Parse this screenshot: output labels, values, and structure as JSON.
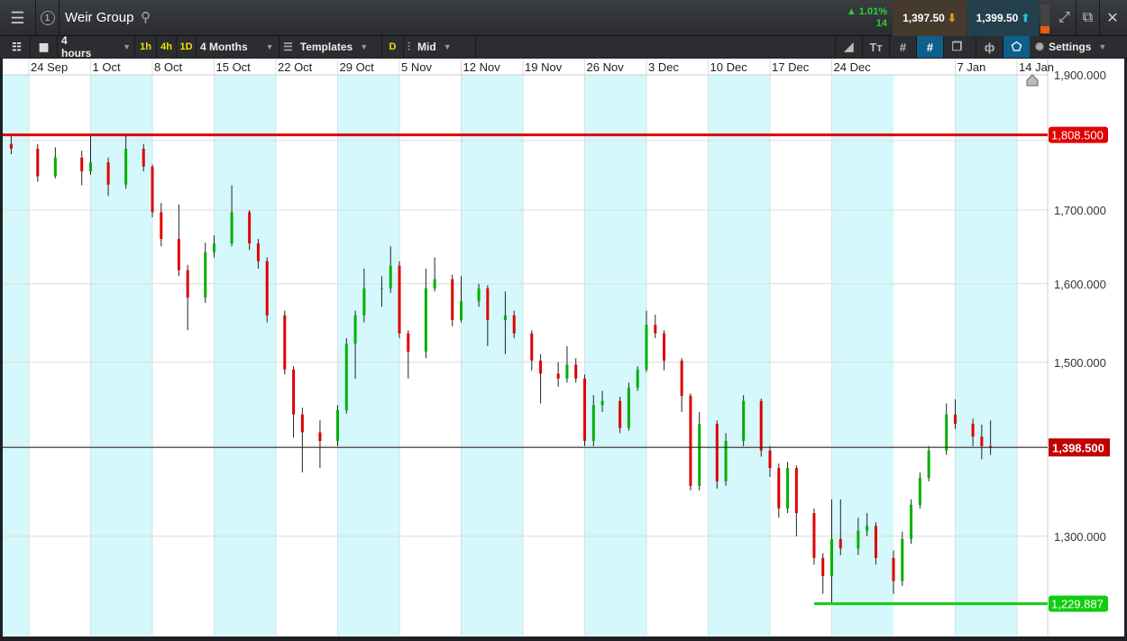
{
  "header": {
    "title": "Weir Group",
    "window_number": "1",
    "change_pct": "▲ 1.01%",
    "change_points": "14",
    "sell_price": "1,397.50",
    "buy_price": "1,399.50"
  },
  "toolbar": {
    "interval": "4 hours",
    "quick_intervals": [
      "1h",
      "4h",
      "1D"
    ],
    "range": "4 Months",
    "templates": "Templates",
    "d_label": "D",
    "price_type": "Mid",
    "settings": "Settings"
  },
  "colors": {
    "up": "#00b000",
    "down": "#e00000",
    "band": "#d4f8fb",
    "resistance": "#e00000",
    "support": "#11cc11",
    "current": "#c00000"
  },
  "chart_data": {
    "type": "candlestick",
    "instrument": "Weir Group",
    "y_scale": "log",
    "ylim": [
      1198,
      1900
    ],
    "y_ticks": [
      1900,
      1700,
      1600,
      1500,
      1300
    ],
    "y_tick_labels": [
      "1,900.000",
      "1,700.000",
      "1,600.000",
      "1,500.000",
      "1,300.000"
    ],
    "x_range": [
      "2018-09-21",
      "2019-01-17"
    ],
    "x_ticks": [
      "2018-09-24",
      "2018-10-01",
      "2018-10-08",
      "2018-10-15",
      "2018-10-22",
      "2018-10-29",
      "2018-11-05",
      "2018-11-12",
      "2018-11-19",
      "2018-11-26",
      "2018-12-03",
      "2018-12-10",
      "2018-12-17",
      "2018-12-24",
      "2019-01-07",
      "2019-01-14"
    ],
    "x_tick_labels": [
      "24 Sep",
      "1 Oct",
      "8 Oct",
      "15 Oct",
      "22 Oct",
      "29 Oct",
      "5 Nov",
      "12 Nov",
      "19 Nov",
      "26 Nov",
      "3 Dec",
      "10 Dec",
      "17 Dec",
      "24 Dec",
      "7 Jan",
      "14 Jan"
    ],
    "grid": true,
    "lines": [
      {
        "kind": "resistance",
        "value": 1808.5,
        "label": "1,808.500",
        "from": "2018-09-21"
      },
      {
        "kind": "support",
        "value": 1229.887,
        "label": "1,229.887",
        "from": "2018-12-22"
      },
      {
        "kind": "current",
        "value": 1398.5,
        "label": "1,398.500"
      }
    ],
    "candles": [
      [
        "2018-09-22",
        1795,
        1808,
        1780,
        1788
      ],
      [
        "2018-09-25",
        1788,
        1795,
        1740,
        1748
      ],
      [
        "2018-09-27",
        1748,
        1790,
        1745,
        1775
      ],
      [
        "2018-09-30",
        1775,
        1785,
        1735,
        1755
      ],
      [
        "2018-10-01",
        1755,
        1808,
        1750,
        1768
      ],
      [
        "2018-10-03",
        1768,
        1775,
        1720,
        1736
      ],
      [
        "2018-10-05",
        1736,
        1808,
        1730,
        1788
      ],
      [
        "2018-10-07",
        1788,
        1795,
        1755,
        1762
      ],
      [
        "2018-10-08",
        1762,
        1765,
        1690,
        1697
      ],
      [
        "2018-10-09",
        1697,
        1710,
        1650,
        1660
      ],
      [
        "2018-10-11",
        1660,
        1708,
        1610,
        1618
      ],
      [
        "2018-10-12",
        1618,
        1625,
        1540,
        1582
      ],
      [
        "2018-10-14",
        1582,
        1655,
        1575,
        1642
      ],
      [
        "2018-10-15",
        1642,
        1665,
        1635,
        1654
      ],
      [
        "2018-10-17",
        1654,
        1735,
        1650,
        1697
      ],
      [
        "2018-10-19",
        1697,
        1700,
        1645,
        1654
      ],
      [
        "2018-10-20",
        1654,
        1660,
        1620,
        1630
      ],
      [
        "2018-10-21",
        1630,
        1635,
        1550,
        1559
      ],
      [
        "2018-10-23",
        1559,
        1565,
        1485,
        1491
      ],
      [
        "2018-10-24",
        1491,
        1495,
        1410,
        1437
      ],
      [
        "2018-10-25",
        1437,
        1445,
        1370,
        1416
      ],
      [
        "2018-10-27",
        1416,
        1430,
        1375,
        1406
      ],
      [
        "2018-10-29",
        1406,
        1448,
        1400,
        1442
      ],
      [
        "2018-10-30",
        1442,
        1530,
        1438,
        1523
      ],
      [
        "2018-10-31",
        1523,
        1565,
        1480,
        1559
      ],
      [
        "2018-11-01",
        1559,
        1620,
        1550,
        1594
      ],
      [
        "2018-11-03",
        1594,
        1610,
        1570,
        1594
      ],
      [
        "2018-11-04",
        1594,
        1650,
        1588,
        1624
      ],
      [
        "2018-11-05",
        1624,
        1630,
        1530,
        1536
      ],
      [
        "2018-11-06",
        1536,
        1540,
        1480,
        1513
      ],
      [
        "2018-11-08",
        1513,
        1620,
        1505,
        1594
      ],
      [
        "2018-11-09",
        1594,
        1635,
        1590,
        1606
      ],
      [
        "2018-11-11",
        1606,
        1612,
        1545,
        1553
      ],
      [
        "2018-11-12",
        1553,
        1610,
        1550,
        1577
      ],
      [
        "2018-11-14",
        1577,
        1600,
        1570,
        1594
      ],
      [
        "2018-11-15",
        1594,
        1598,
        1520,
        1553
      ],
      [
        "2018-11-17",
        1553,
        1590,
        1510,
        1559
      ],
      [
        "2018-11-18",
        1559,
        1565,
        1530,
        1536
      ],
      [
        "2018-11-20",
        1536,
        1540,
        1490,
        1502
      ],
      [
        "2018-11-21",
        1502,
        1510,
        1450,
        1486
      ],
      [
        "2018-11-23",
        1486,
        1500,
        1470,
        1480
      ],
      [
        "2018-11-24",
        1480,
        1520,
        1475,
        1497
      ],
      [
        "2018-11-25",
        1497,
        1505,
        1475,
        1480
      ],
      [
        "2018-11-26",
        1480,
        1485,
        1400,
        1406
      ],
      [
        "2018-11-27",
        1406,
        1460,
        1400,
        1448
      ],
      [
        "2018-11-28",
        1448,
        1465,
        1440,
        1453
      ],
      [
        "2018-11-30",
        1453,
        1458,
        1415,
        1421
      ],
      [
        "2018-12-01",
        1421,
        1475,
        1418,
        1469
      ],
      [
        "2018-12-02",
        1469,
        1495,
        1465,
        1491
      ],
      [
        "2018-12-03",
        1491,
        1565,
        1488,
        1547
      ],
      [
        "2018-12-04",
        1547,
        1560,
        1530,
        1536
      ],
      [
        "2018-12-05",
        1536,
        1540,
        1490,
        1502
      ],
      [
        "2018-12-07",
        1502,
        1505,
        1440,
        1459
      ],
      [
        "2018-12-08",
        1459,
        1462,
        1350,
        1355
      ],
      [
        "2018-12-09",
        1355,
        1440,
        1350,
        1426
      ],
      [
        "2018-12-11",
        1426,
        1430,
        1352,
        1360
      ],
      [
        "2018-12-12",
        1360,
        1415,
        1355,
        1406
      ],
      [
        "2018-12-14",
        1406,
        1460,
        1400,
        1453
      ],
      [
        "2018-12-16",
        1453,
        1456,
        1388,
        1395
      ],
      [
        "2018-12-17",
        1395,
        1400,
        1365,
        1375
      ],
      [
        "2018-12-18",
        1375,
        1380,
        1320,
        1330
      ],
      [
        "2018-12-19",
        1330,
        1382,
        1325,
        1375
      ],
      [
        "2018-12-20",
        1375,
        1378,
        1300,
        1325
      ],
      [
        "2018-12-22",
        1325,
        1330,
        1270,
        1277
      ],
      [
        "2018-12-23",
        1277,
        1282,
        1240,
        1258
      ],
      [
        "2018-12-24",
        1258,
        1340,
        1229.887,
        1297
      ],
      [
        "2018-12-25",
        1297,
        1340,
        1280,
        1287
      ],
      [
        "2018-12-27",
        1287,
        1320,
        1280,
        1306
      ],
      [
        "2018-12-28",
        1306,
        1325,
        1300,
        1311
      ],
      [
        "2018-12-29",
        1311,
        1315,
        1270,
        1277
      ],
      [
        "2018-12-31",
        1277,
        1285,
        1240,
        1253
      ],
      [
        "2019-01-01",
        1253,
        1305,
        1248,
        1297
      ],
      [
        "2019-01-02",
        1297,
        1340,
        1292,
        1334
      ],
      [
        "2019-01-03",
        1334,
        1370,
        1330,
        1364
      ],
      [
        "2019-01-04",
        1364,
        1400,
        1360,
        1395
      ],
      [
        "2019-01-06",
        1395,
        1450,
        1390,
        1437
      ],
      [
        "2019-01-07",
        1437,
        1455,
        1420,
        1426
      ],
      [
        "2019-01-09",
        1426,
        1432,
        1400,
        1411
      ],
      [
        "2019-01-10",
        1411,
        1425,
        1385,
        1400
      ],
      [
        "2019-01-11",
        1400,
        1430,
        1390,
        1398.5
      ]
    ]
  }
}
